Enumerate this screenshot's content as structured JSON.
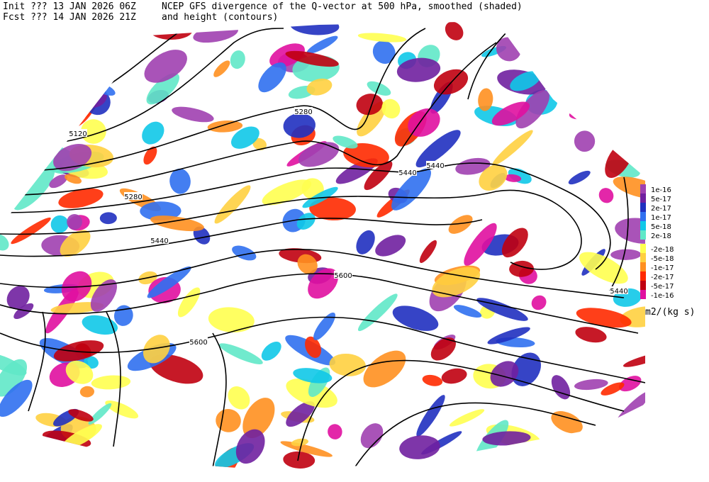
{
  "header": {
    "init": "Init  ??? 13 JAN 2026 06Z",
    "fcst": "Fcst ??? 14 JAN 2026 21Z",
    "title": "NCEP GFS divergence of the Q-vector at 500 hPa, smoothed (shaded)",
    "subtitle": "and height (contours)"
  },
  "contour_labels": [
    "5120",
    "5280",
    "5440",
    "5280",
    "5440",
    "5440",
    "5600",
    "5600",
    "5440"
  ],
  "colorbar": {
    "labels": [
      "1e-16",
      "5e-17",
      "2e-17",
      "1e-17",
      "5e-18",
      "2e-18",
      "-2e-18",
      "-5e-18",
      "-1e-17",
      "-2e-17",
      "-5e-17",
      "-1e-16"
    ],
    "units": "m2/(kg s)"
  }
}
